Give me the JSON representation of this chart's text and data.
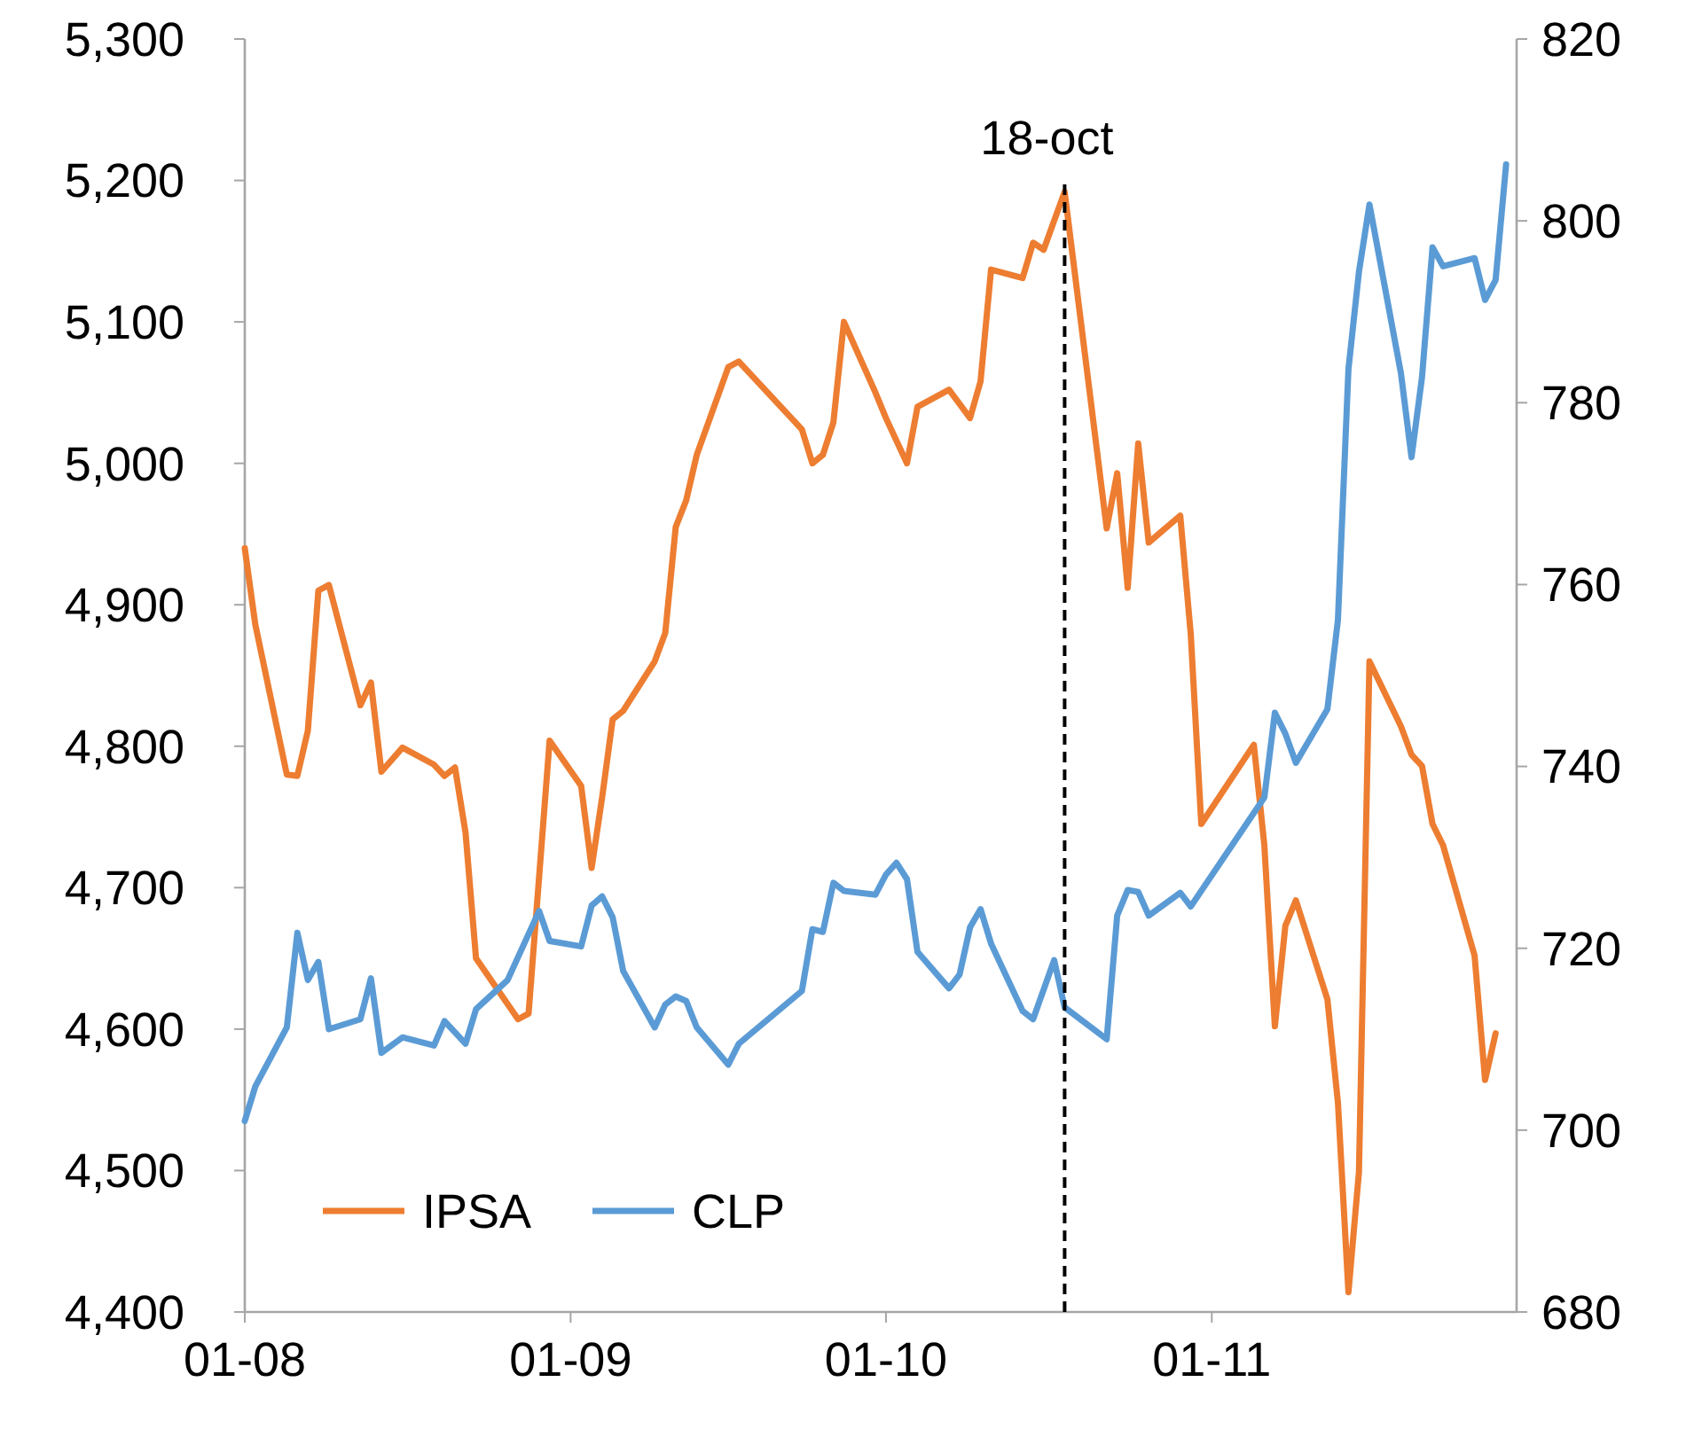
{
  "chart_data": {
    "type": "line",
    "xlim": [
      "--08-01",
      "--11-30"
    ],
    "xticks": [
      {
        "value": "--08-01",
        "label": "01-08"
      },
      {
        "value": "--09-01",
        "label": "01-09"
      },
      {
        "value": "--10-01",
        "label": "01-10"
      },
      {
        "value": "--11-01",
        "label": "01-11"
      }
    ],
    "ylim": [
      4400,
      5300
    ],
    "yticks": [
      {
        "value": 4400,
        "label": "4,400"
      },
      {
        "value": 4500,
        "label": "4,500"
      },
      {
        "value": 4600,
        "label": "4,600"
      },
      {
        "value": 4700,
        "label": "4,700"
      },
      {
        "value": 4800,
        "label": "4,800"
      },
      {
        "value": 4900,
        "label": "4,900"
      },
      {
        "value": 5000,
        "label": "5,000"
      },
      {
        "value": 5100,
        "label": "5,100"
      },
      {
        "value": 5200,
        "label": "5,200"
      },
      {
        "value": 5300,
        "label": "5,300"
      }
    ],
    "y2lim": [
      680,
      820
    ],
    "y2ticks": [
      680,
      700,
      720,
      740,
      760,
      780,
      800,
      820
    ],
    "grid": false,
    "legend": "bottom left",
    "line_style": "solid",
    "marker": "none",
    "ref_lines": [
      {
        "axis": "x",
        "value": "--10-18",
        "label": "18-oct",
        "color": "#000000",
        "line_style": "dashed"
      }
    ],
    "series": [
      {
        "name": "IPSA",
        "color": "#ed7d31",
        "x": [
          "--08-01",
          "--08-02",
          "--08-05",
          "--08-06",
          "--08-07",
          "--08-08",
          "--08-09",
          "--08-12",
          "--08-13",
          "--08-14",
          "--08-16",
          "--08-19",
          "--08-20",
          "--08-21",
          "--08-22",
          "--08-23",
          "--08-27",
          "--08-28",
          "--08-30",
          "--09-02",
          "--09-03",
          "--09-04",
          "--09-05",
          "--09-06",
          "--09-09",
          "--09-10",
          "--09-11",
          "--09-12",
          "--09-13",
          "--09-16",
          "--09-17",
          "--09-23",
          "--09-24",
          "--09-25",
          "--09-26",
          "--09-27",
          "--09-30",
          "--10-01",
          "--10-03",
          "--10-04",
          "--10-07",
          "--10-09",
          "--10-10",
          "--10-11",
          "--10-14",
          "--10-15",
          "--10-16",
          "--10-18",
          "--10-22",
          "--10-23",
          "--10-24",
          "--10-25",
          "--10-26",
          "--10-29",
          "--10-30",
          "--10-31",
          "--11-05",
          "--11-06",
          "--11-07",
          "--11-08",
          "--11-09",
          "--11-12",
          "--11-13",
          "--11-14",
          "--11-15",
          "--11-16",
          "--11-19",
          "--11-20",
          "--11-21",
          "--11-22",
          "--11-23",
          "--11-26",
          "--11-27",
          "--11-28"
        ],
        "values": [
          4940,
          4886,
          4780,
          4779,
          4811,
          4910,
          4914,
          4829,
          4845,
          4782,
          4799,
          4787,
          4779,
          4785,
          4739,
          4650,
          4607,
          4611,
          4804,
          4772,
          4714,
          4764,
          4819,
          4825,
          4860,
          4880,
          4955,
          4974,
          5006,
          5068,
          5072,
          5024,
          5000,
          5006,
          5029,
          5100,
          5050,
          5032,
          5000,
          5040,
          5052,
          5032,
          5058,
          5137,
          5131,
          5156,
          5151,
          5192,
          4954,
          4993,
          4912,
          5014,
          4944,
          4963,
          4879,
          4745,
          4801,
          4730,
          4602,
          4673,
          4691,
          4621,
          4548,
          4414,
          4499,
          4860,
          4814,
          4794,
          4786,
          4745,
          4730,
          4652,
          4564,
          4597
        ]
      },
      {
        "name": "CLP",
        "color": "#5b9bd5",
        "axis": "y2",
        "x": [
          "--08-01",
          "--08-02",
          "--08-05",
          "--08-06",
          "--08-07",
          "--08-08",
          "--08-09",
          "--08-12",
          "--08-13",
          "--08-14",
          "--08-16",
          "--08-19",
          "--08-20",
          "--08-22",
          "--08-23",
          "--08-26",
          "--08-29",
          "--08-30",
          "--09-02",
          "--09-03",
          "--09-04",
          "--09-05",
          "--09-06",
          "--09-09",
          "--09-10",
          "--09-11",
          "--09-12",
          "--09-13",
          "--09-16",
          "--09-17",
          "--09-23",
          "--09-24",
          "--09-25",
          "--09-26",
          "--09-27",
          "--09-30",
          "--10-01",
          "--10-02",
          "--10-03",
          "--10-04",
          "--10-07",
          "--10-08",
          "--10-09",
          "--10-10",
          "--10-11",
          "--10-14",
          "--10-15",
          "--10-17",
          "--10-18",
          "--10-22",
          "--10-23",
          "--10-24",
          "--10-25",
          "--10-26",
          "--10-29",
          "--10-30",
          "--11-06",
          "--11-07",
          "--11-08",
          "--11-09",
          "--11-12",
          "--11-13",
          "--11-14",
          "--11-15",
          "--11-16",
          "--11-19",
          "--11-20",
          "--11-21",
          "--11-22",
          "--11-23",
          "--11-26",
          "--11-27",
          "--11-28",
          "--11-29"
        ],
        "values": [
          701.0,
          704.8,
          711.3,
          721.7,
          716.5,
          718.5,
          711.1,
          712.2,
          716.7,
          708.5,
          710.2,
          709.3,
          712.0,
          709.5,
          713.3,
          716.5,
          724.1,
          720.8,
          720.2,
          724.7,
          725.7,
          723.4,
          717.5,
          711.3,
          713.8,
          714.7,
          714.2,
          711.3,
          707.2,
          709.5,
          715.3,
          722.1,
          721.8,
          727.2,
          726.3,
          725.9,
          728.1,
          729.4,
          727.6,
          719.6,
          715.6,
          717.1,
          722.3,
          724.3,
          720.5,
          713.1,
          712.2,
          718.7,
          713.5,
          710.0,
          723.6,
          726.4,
          726.2,
          723.6,
          726.1,
          724.6,
          736.6,
          745.9,
          743.6,
          740.4,
          746.3,
          756.1,
          783.7,
          794.4,
          801.8,
          783.2,
          774.0,
          782.8,
          797.1,
          795.0,
          795.9,
          791.3,
          793.5,
          806.2
        ]
      }
    ]
  }
}
